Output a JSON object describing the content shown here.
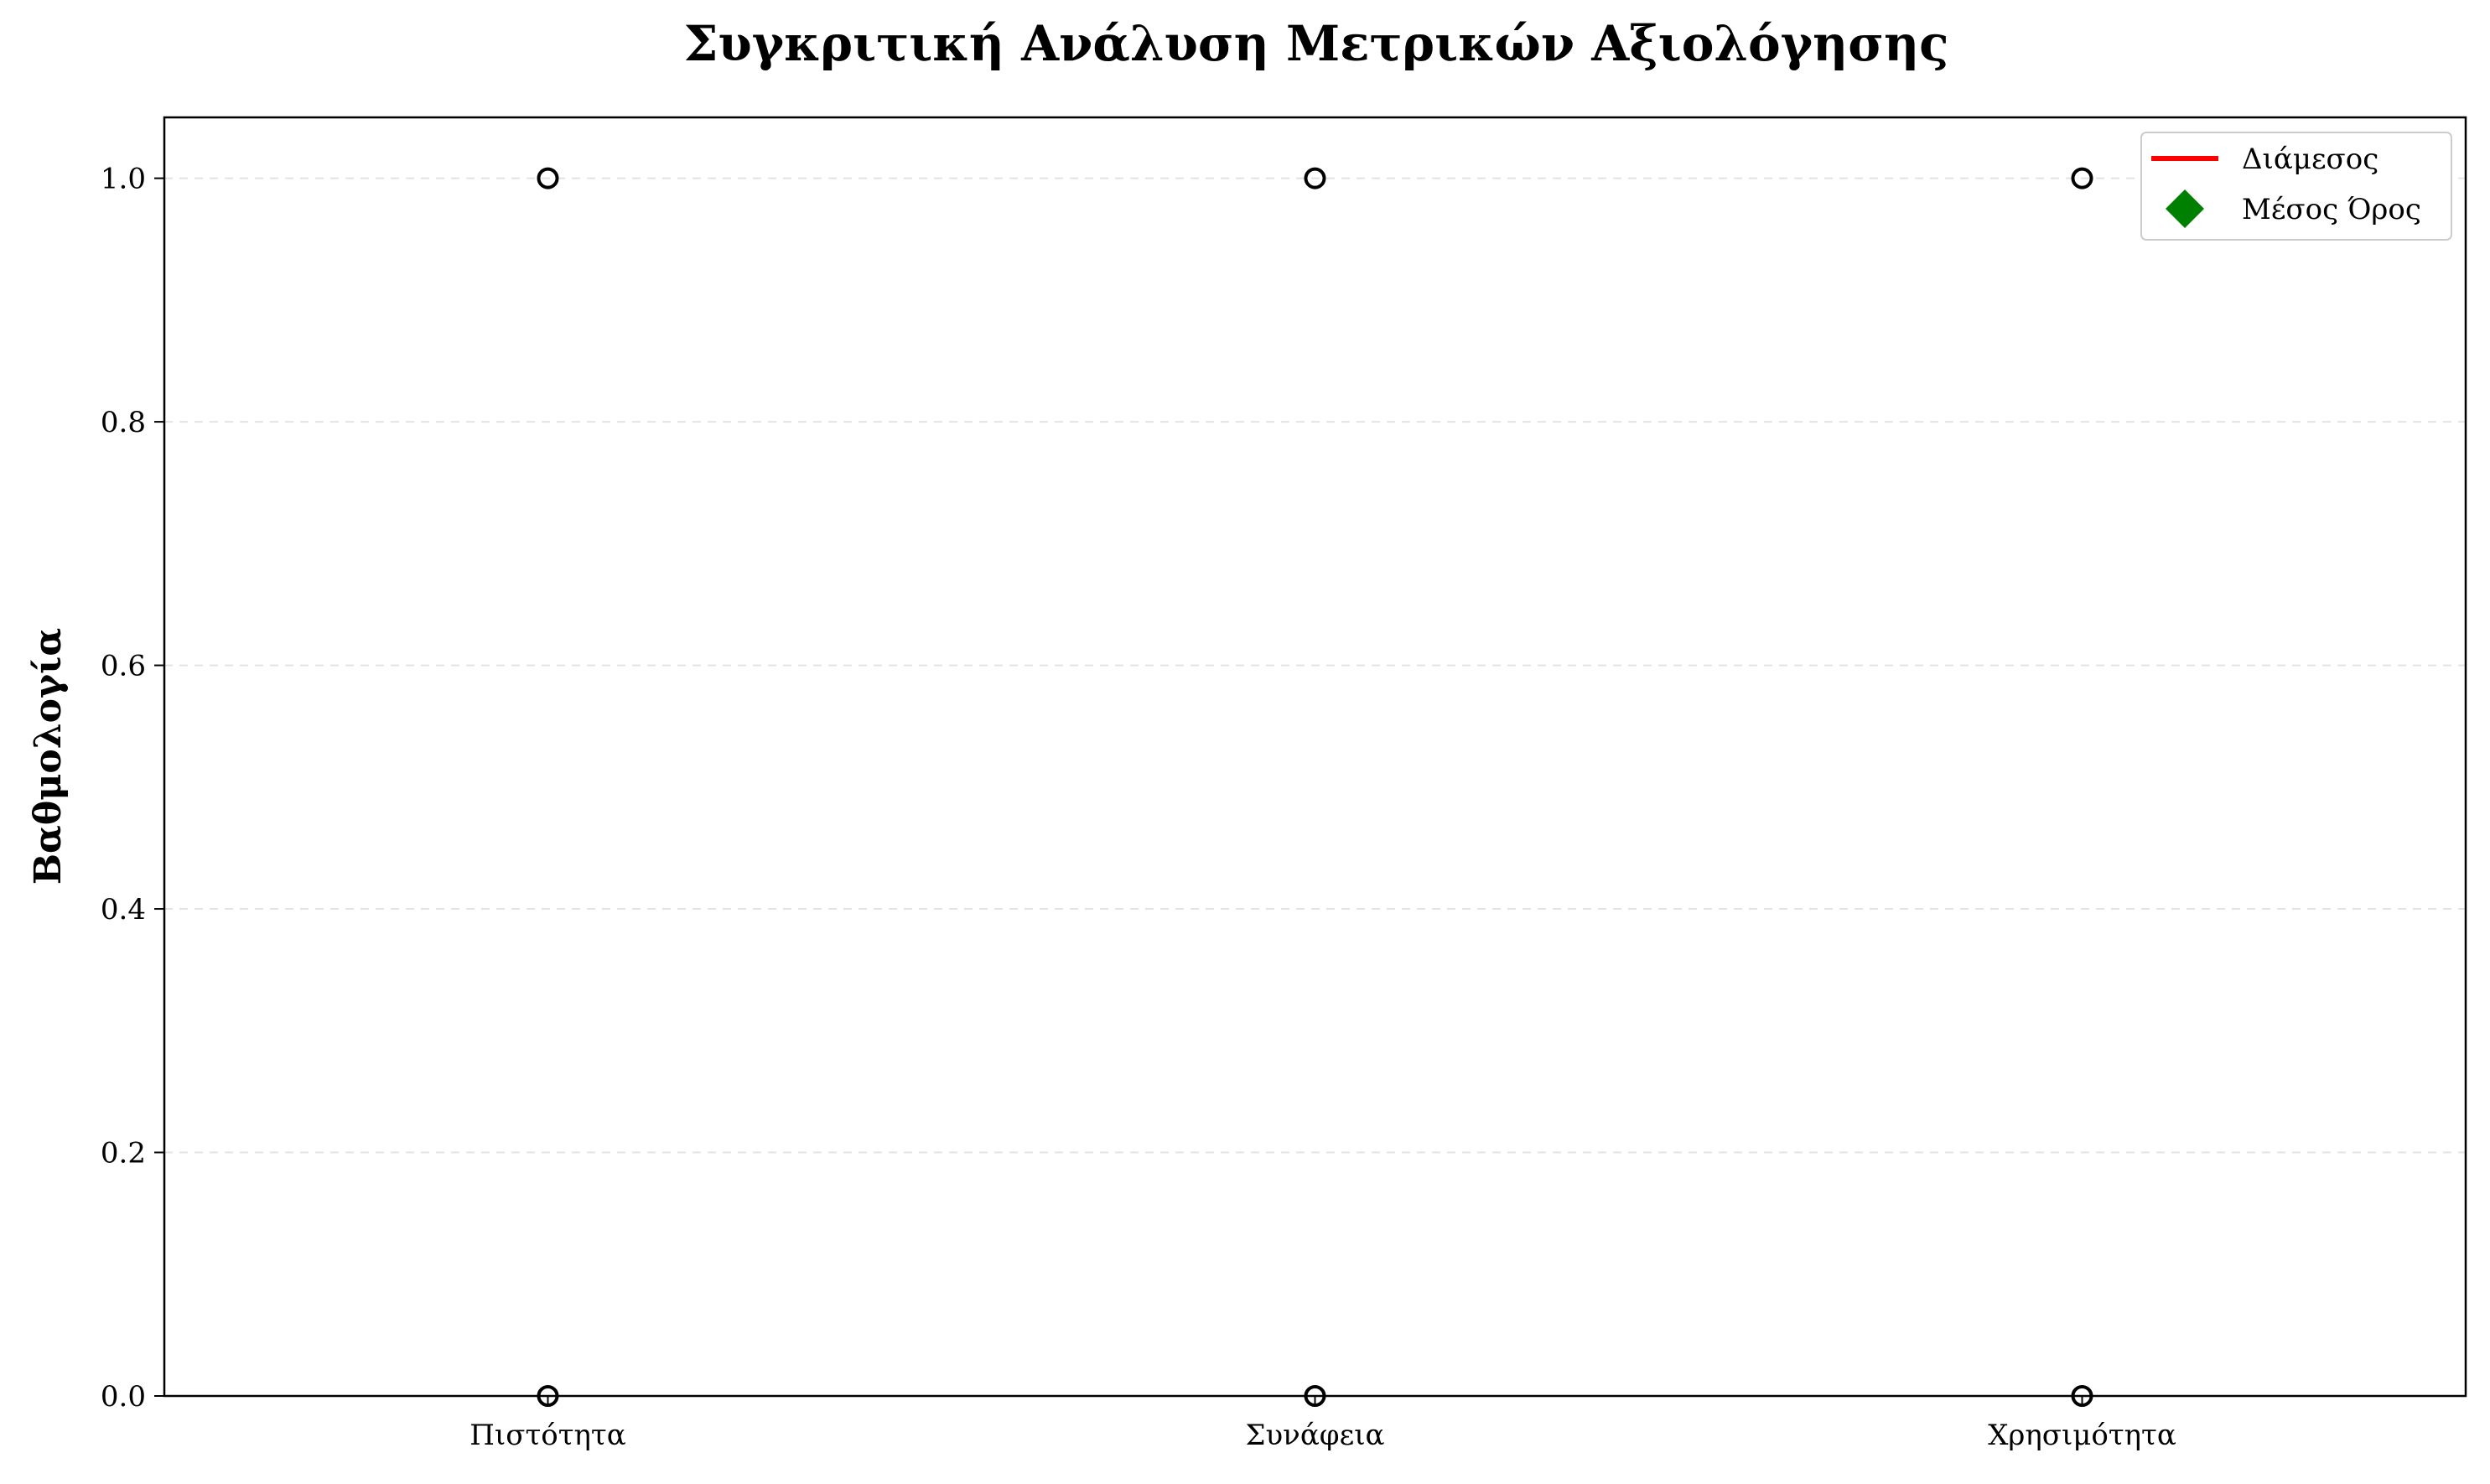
{
  "chart_data": {
    "type": "box",
    "title": "Συγκριτική Ανάλυση Μετρικών Αξιολόγησης",
    "xlabel": "",
    "ylabel": "Βαθμολογία",
    "categories": [
      "Πιστότητα",
      "Συνάφεια",
      "Χρησιμότητα"
    ],
    "ylim": [
      0.0,
      1.05
    ],
    "yticks": [
      0.0,
      0.2,
      0.4,
      0.6,
      0.8,
      1.0
    ],
    "ytick_labels": [
      "0.0",
      "0.2",
      "0.4",
      "0.6",
      "0.8",
      "1.0"
    ],
    "grid": "y-dashed",
    "points": [
      {
        "category": "Πιστότητα",
        "values": [
          1.0,
          0.0
        ]
      },
      {
        "category": "Συνάφεια",
        "values": [
          1.0,
          0.0
        ]
      },
      {
        "category": "Χρησιμότητα",
        "values": [
          1.0,
          0.0
        ]
      }
    ],
    "legend": {
      "placement": "top-right",
      "entries": [
        {
          "label": "Διάμεσος",
          "marker": "line",
          "color": "#ff0000"
        },
        {
          "label": "Μέσος Όρος",
          "marker": "diamond",
          "color": "#008000"
        }
      ]
    }
  }
}
